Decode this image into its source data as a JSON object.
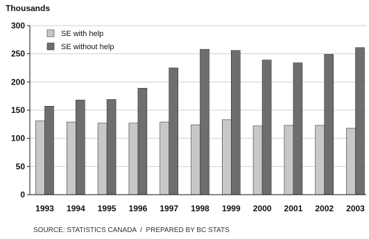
{
  "chart_data": {
    "type": "bar",
    "y_unit_label": "Thousands",
    "categories": [
      "1993",
      "1994",
      "1995",
      "1996",
      "1997",
      "1998",
      "1999",
      "2000",
      "2001",
      "2002",
      "2003"
    ],
    "series": [
      {
        "name": "SE with help",
        "color": "#c8c8c8",
        "values": [
          131,
          129,
          127,
          127,
          129,
          124,
          133,
          122,
          123,
          123,
          118
        ]
      },
      {
        "name": "SE without help",
        "color": "#6e6e6e",
        "values": [
          157,
          168,
          169,
          189,
          225,
          258,
          256,
          239,
          234,
          249,
          261
        ]
      }
    ],
    "ylim": [
      0,
      300
    ],
    "yticks": [
      0,
      50,
      100,
      150,
      200,
      250,
      300
    ],
    "grid": true,
    "legend_position": "top-left",
    "source": "SOURCE: STATISTICS CANADA  /  PREPARED BY BC STATS"
  }
}
